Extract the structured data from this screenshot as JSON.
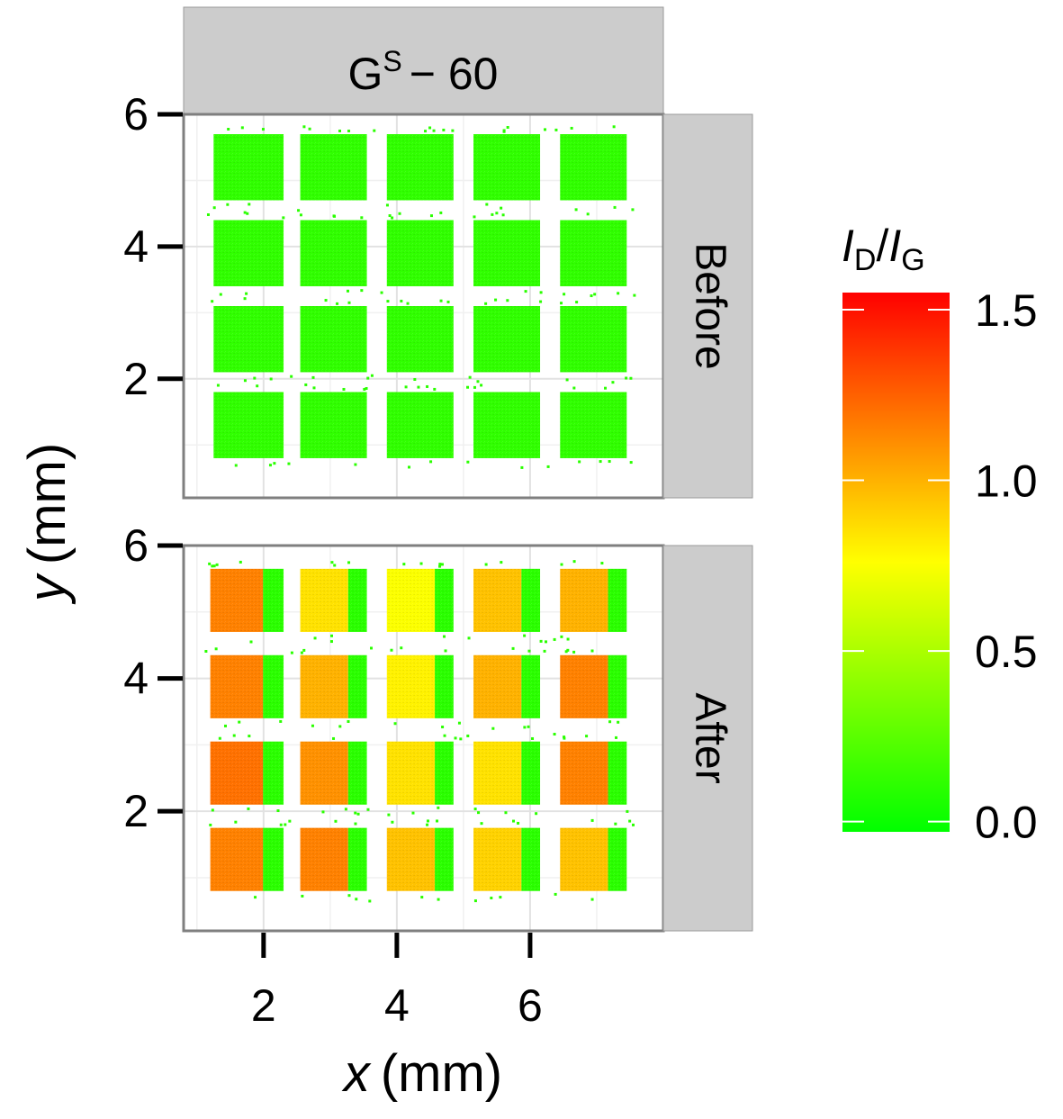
{
  "chart_data": {
    "type": "heatmap",
    "title": "",
    "facet_title": {
      "base": "G",
      "sup": "S",
      "rest": "− 60"
    },
    "xlabel": {
      "var": "x",
      "unit": "(mm)"
    },
    "ylabel": {
      "var": "y",
      "unit": "(mm)"
    },
    "xlim": [
      0.8,
      8.0
    ],
    "ylim": [
      0.2,
      6.0
    ],
    "x_ticks": [
      2,
      4,
      6
    ],
    "x_tick_labels": [
      "2",
      "4",
      "6"
    ],
    "y_ticks": [
      2,
      4,
      6
    ],
    "y_tick_labels": [
      "2",
      "4",
      "6"
    ],
    "grid": true,
    "colorbar": {
      "title": {
        "i1": "I",
        "s1": "D",
        "slash": "/",
        "i2": "I",
        "s2": "G"
      },
      "min": -0.03,
      "max": 1.55,
      "ticks": [
        0.0,
        0.5,
        1.0,
        1.5
      ],
      "tick_labels": [
        "0.0",
        "0.5",
        "1.0",
        "1.5"
      ],
      "colors": [
        "#00ff00",
        "#ffff00",
        "#ff0000"
      ]
    },
    "panels": [
      {
        "label": "Before",
        "cells": [
          {
            "x": [
              1.25,
              2.3
            ],
            "y": [
              4.7,
              5.7
            ],
            "v": [
              0.12,
              0.12
            ]
          },
          {
            "x": [
              2.55,
              3.55
            ],
            "y": [
              4.7,
              5.7
            ],
            "v": [
              0.12,
              0.12
            ]
          },
          {
            "x": [
              3.85,
              4.85
            ],
            "y": [
              4.7,
              5.7
            ],
            "v": [
              0.12,
              0.12
            ]
          },
          {
            "x": [
              5.15,
              6.15
            ],
            "y": [
              4.7,
              5.7
            ],
            "v": [
              0.12,
              0.12
            ]
          },
          {
            "x": [
              6.45,
              7.45
            ],
            "y": [
              4.7,
              5.7
            ],
            "v": [
              0.12,
              0.12
            ]
          },
          {
            "x": [
              1.25,
              2.3
            ],
            "y": [
              3.4,
              4.4
            ],
            "v": [
              0.12,
              0.12
            ]
          },
          {
            "x": [
              2.55,
              3.55
            ],
            "y": [
              3.4,
              4.4
            ],
            "v": [
              0.12,
              0.12
            ]
          },
          {
            "x": [
              3.85,
              4.85
            ],
            "y": [
              3.4,
              4.4
            ],
            "v": [
              0.12,
              0.12
            ]
          },
          {
            "x": [
              5.15,
              6.15
            ],
            "y": [
              3.4,
              4.4
            ],
            "v": [
              0.12,
              0.12
            ]
          },
          {
            "x": [
              6.45,
              7.45
            ],
            "y": [
              3.4,
              4.4
            ],
            "v": [
              0.12,
              0.12
            ]
          },
          {
            "x": [
              1.25,
              2.3
            ],
            "y": [
              2.1,
              3.1
            ],
            "v": [
              0.12,
              0.12
            ]
          },
          {
            "x": [
              2.55,
              3.55
            ],
            "y": [
              2.1,
              3.1
            ],
            "v": [
              0.12,
              0.12
            ]
          },
          {
            "x": [
              3.85,
              4.85
            ],
            "y": [
              2.1,
              3.1
            ],
            "v": [
              0.12,
              0.12
            ]
          },
          {
            "x": [
              5.15,
              6.15
            ],
            "y": [
              2.1,
              3.1
            ],
            "v": [
              0.12,
              0.12
            ]
          },
          {
            "x": [
              6.45,
              7.45
            ],
            "y": [
              2.1,
              3.1
            ],
            "v": [
              0.12,
              0.12
            ]
          },
          {
            "x": [
              1.25,
              2.3
            ],
            "y": [
              0.8,
              1.8
            ],
            "v": [
              0.12,
              0.12
            ]
          },
          {
            "x": [
              2.55,
              3.55
            ],
            "y": [
              0.8,
              1.8
            ],
            "v": [
              0.12,
              0.12
            ]
          },
          {
            "x": [
              3.85,
              4.85
            ],
            "y": [
              0.8,
              1.8
            ],
            "v": [
              0.12,
              0.12
            ]
          },
          {
            "x": [
              5.15,
              6.15
            ],
            "y": [
              0.8,
              1.8
            ],
            "v": [
              0.12,
              0.12
            ]
          },
          {
            "x": [
              6.45,
              7.45
            ],
            "y": [
              0.8,
              1.8
            ],
            "v": [
              0.12,
              0.12
            ]
          }
        ]
      },
      {
        "label": "After",
        "cells": [
          {
            "x": [
              1.2,
              2.3
            ],
            "y": [
              4.7,
              5.65
            ],
            "v": [
              1.15,
              0.1
            ]
          },
          {
            "x": [
              2.55,
              3.55
            ],
            "y": [
              4.7,
              5.65
            ],
            "v": [
              0.85,
              0.1
            ]
          },
          {
            "x": [
              3.85,
              4.85
            ],
            "y": [
              4.7,
              5.65
            ],
            "v": [
              0.75,
              0.1
            ]
          },
          {
            "x": [
              5.15,
              6.15
            ],
            "y": [
              4.7,
              5.65
            ],
            "v": [
              0.95,
              0.1
            ]
          },
          {
            "x": [
              6.45,
              7.45
            ],
            "y": [
              4.7,
              5.65
            ],
            "v": [
              1.0,
              0.1
            ]
          },
          {
            "x": [
              1.2,
              2.3
            ],
            "y": [
              3.4,
              4.35
            ],
            "v": [
              1.15,
              0.1
            ]
          },
          {
            "x": [
              2.55,
              3.55
            ],
            "y": [
              3.4,
              4.35
            ],
            "v": [
              1.0,
              0.1
            ]
          },
          {
            "x": [
              3.85,
              4.85
            ],
            "y": [
              3.4,
              4.35
            ],
            "v": [
              0.8,
              0.1
            ]
          },
          {
            "x": [
              5.15,
              6.15
            ],
            "y": [
              3.4,
              4.35
            ],
            "v": [
              1.0,
              0.1
            ]
          },
          {
            "x": [
              6.45,
              7.45
            ],
            "y": [
              3.4,
              4.35
            ],
            "v": [
              1.15,
              0.1
            ]
          },
          {
            "x": [
              1.2,
              2.3
            ],
            "y": [
              2.1,
              3.05
            ],
            "v": [
              1.2,
              0.1
            ]
          },
          {
            "x": [
              2.55,
              3.55
            ],
            "y": [
              2.1,
              3.05
            ],
            "v": [
              1.1,
              0.1
            ]
          },
          {
            "x": [
              3.85,
              4.85
            ],
            "y": [
              2.1,
              3.05
            ],
            "v": [
              0.85,
              0.1
            ]
          },
          {
            "x": [
              5.15,
              6.15
            ],
            "y": [
              2.1,
              3.05
            ],
            "v": [
              0.85,
              0.1
            ]
          },
          {
            "x": [
              6.45,
              7.45
            ],
            "y": [
              2.1,
              3.05
            ],
            "v": [
              1.15,
              0.1
            ]
          },
          {
            "x": [
              1.2,
              2.3
            ],
            "y": [
              0.8,
              1.75
            ],
            "v": [
              1.15,
              0.1
            ]
          },
          {
            "x": [
              2.55,
              3.55
            ],
            "y": [
              0.8,
              1.75
            ],
            "v": [
              1.15,
              0.1
            ]
          },
          {
            "x": [
              3.85,
              4.85
            ],
            "y": [
              0.8,
              1.75
            ],
            "v": [
              0.95,
              0.1
            ]
          },
          {
            "x": [
              5.15,
              6.15
            ],
            "y": [
              0.8,
              1.75
            ],
            "v": [
              0.9,
              0.1
            ]
          },
          {
            "x": [
              6.45,
              7.45
            ],
            "y": [
              0.8,
              1.75
            ],
            "v": [
              0.95,
              0.1
            ]
          }
        ]
      }
    ]
  }
}
